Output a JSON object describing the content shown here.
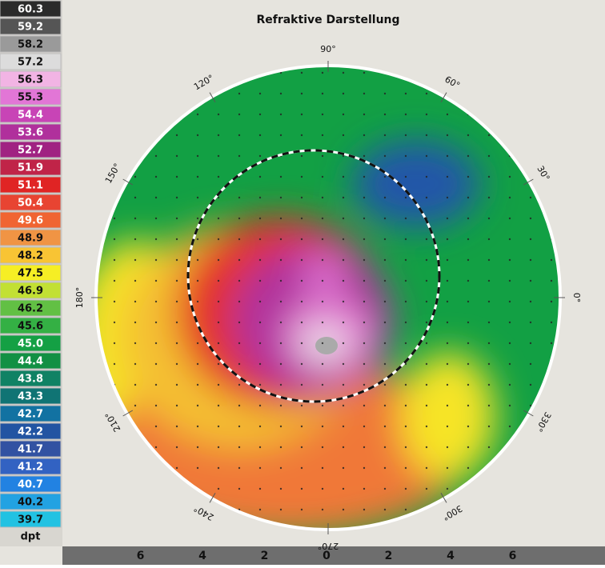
{
  "title": "Refraktive Darstellung",
  "legend": {
    "entries": [
      {
        "label": "60.3",
        "color": "#2b2b2b"
      },
      {
        "label": "59.2",
        "color": "#555555"
      },
      {
        "label": "58.2",
        "color": "#9a9a9a"
      },
      {
        "label": "57.2",
        "color": "#dcdcdc"
      },
      {
        "label": "56.3",
        "color": "#f2b4e4"
      },
      {
        "label": "55.3",
        "color": "#e276d6"
      },
      {
        "label": "54.4",
        "color": "#c844b6"
      },
      {
        "label": "53.6",
        "color": "#b0309c"
      },
      {
        "label": "52.7",
        "color": "#a02282"
      },
      {
        "label": "51.9",
        "color": "#c02448"
      },
      {
        "label": "51.1",
        "color": "#e02424"
      },
      {
        "label": "50.4",
        "color": "#e84432"
      },
      {
        "label": "49.6",
        "color": "#f06432"
      },
      {
        "label": "48.9",
        "color": "#f09444"
      },
      {
        "label": "48.2",
        "color": "#f8c434"
      },
      {
        "label": "47.5",
        "color": "#f6ee24"
      },
      {
        "label": "46.9",
        "color": "#c2e034"
      },
      {
        "label": "46.2",
        "color": "#62c044"
      },
      {
        "label": "45.6",
        "color": "#34b044"
      },
      {
        "label": "45.0",
        "color": "#14a044"
      },
      {
        "label": "44.4",
        "color": "#129044"
      },
      {
        "label": "43.8",
        "color": "#108264"
      },
      {
        "label": "43.3",
        "color": "#107474"
      },
      {
        "label": "42.7",
        "color": "#1272a2"
      },
      {
        "label": "42.2",
        "color": "#2254a2"
      },
      {
        "label": "41.7",
        "color": "#3252a2"
      },
      {
        "label": "41.2",
        "color": "#3262c2"
      },
      {
        "label": "40.7",
        "color": "#2282e2"
      },
      {
        "label": "40.2",
        "color": "#22a2e2"
      },
      {
        "label": "39.7",
        "color": "#22c2e2"
      }
    ],
    "unit": "dpt"
  },
  "angle_labels": [
    "90°",
    "60°",
    "30°",
    "0°",
    "330°",
    "300°",
    "270°",
    "240°",
    "210°",
    "180°",
    "150°",
    "120°"
  ],
  "axis_ticks": [
    "6",
    "4",
    "2",
    "0",
    "2",
    "4",
    "6"
  ]
}
